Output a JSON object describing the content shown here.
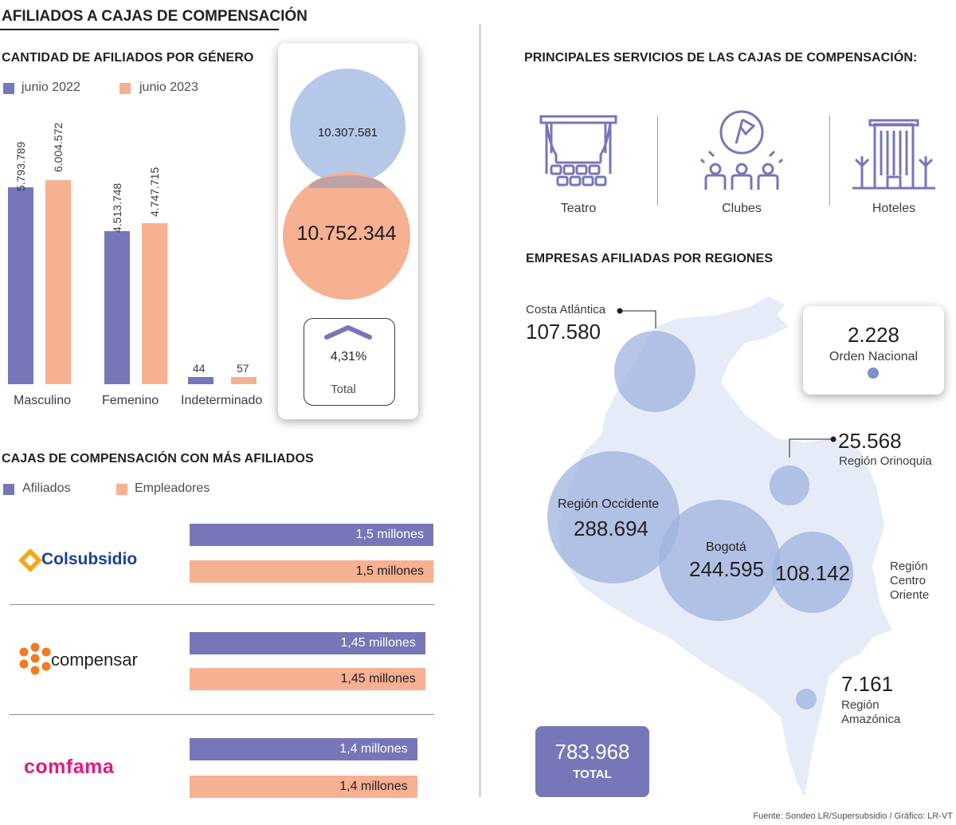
{
  "title": "AFILIADOS A CAJAS DE COMPENSACIÓN",
  "colors": {
    "series1": "#7676b8",
    "series2": "#f6b092",
    "region": "#9fb3df",
    "map": "#e6ecf7",
    "text": "#231f20"
  },
  "gender_section": {
    "heading": "CANTIDAD DE AFILIADOS POR GÉNERO",
    "legend": [
      "junio 2022",
      "junio 2023"
    ],
    "labels": {
      "m22": "5.793.789",
      "m23": "6.004.572",
      "f22": "4.513.748",
      "f23": "4.747.715",
      "i22": "44",
      "i23": "57"
    },
    "categories": [
      "Masculino",
      "Femenino",
      "Indeterminado"
    ]
  },
  "totals_card": {
    "total_2022": "10.307.581",
    "total_2023": "10.752.344",
    "change": "4,31%",
    "change_label": "Total",
    "arrow_icon": "chevron-up-icon"
  },
  "cajas_section": {
    "heading": "CAJAS DE COMPENSACIÓN CON MÁS AFILIADOS",
    "legend": [
      "Afiliados",
      "Empleadores"
    ],
    "rows": [
      {
        "logo": "Colsubsidio",
        "afiliados_label": "1,5 millones",
        "empleadores_label": "1,5 millones"
      },
      {
        "logo": "compensar",
        "afiliados_label": "1,45 millones",
        "empleadores_label": "1,45 millones"
      },
      {
        "logo": "comfama",
        "afiliados_label": "1,4 millones",
        "empleadores_label": "1,4 millones"
      }
    ]
  },
  "services_section": {
    "heading": "PRINCIPALES SERVICIOS DE LAS CAJAS DE COMPENSACIÓN:",
    "items": [
      {
        "label": "Teatro",
        "icon": "theater-icon"
      },
      {
        "label": "Clubes",
        "icon": "club-icon"
      },
      {
        "label": "Hoteles",
        "icon": "hotel-icon"
      }
    ]
  },
  "regions_section": {
    "heading": "EMPRESAS AFILIADAS POR REGIONES",
    "costa": {
      "name": "Costa Atlántica",
      "value": "107.580"
    },
    "nacional": {
      "name": "Orden Nacional",
      "value": "2.228"
    },
    "orinoquia": {
      "name": "Región Orinoquia",
      "value": "25.568"
    },
    "occidente": {
      "name": "Región Occidente",
      "value": "288.694"
    },
    "bogota": {
      "name": "Bogotá",
      "value": "244.595"
    },
    "centro": {
      "name_line1": "Región",
      "name_line2": "Centro",
      "name_line3": "Oriente",
      "value": "108.142"
    },
    "amazonica": {
      "name_line1": "Región",
      "name_line2": "Amazónica",
      "value": "7.161"
    },
    "total": {
      "value": "783.968",
      "label": "TOTAL"
    }
  },
  "source": "Fuente: Sondeo LR/Supersubsidio / Gráfico: LR-VT",
  "chart_data": [
    {
      "type": "bar",
      "title": "CANTIDAD DE AFILIADOS POR GÉNERO",
      "categories": [
        "Masculino",
        "Femenino",
        "Indeterminado"
      ],
      "series": [
        {
          "name": "junio 2022",
          "values": [
            5793789,
            4513748,
            44
          ]
        },
        {
          "name": "junio 2023",
          "values": [
            6004572,
            4747715,
            57
          ]
        }
      ],
      "totals": {
        "junio 2022": 10307581,
        "junio 2023": 10752344
      },
      "change_pct": 4.31
    },
    {
      "type": "bar",
      "title": "CAJAS DE COMPENSACIÓN CON MÁS AFILIADOS",
      "categories": [
        "Colsubsidio",
        "compensar",
        "comfama"
      ],
      "series": [
        {
          "name": "Afiliados",
          "values": [
            1.5,
            1.45,
            1.4
          ]
        },
        {
          "name": "Empleadores",
          "values": [
            1.5,
            1.45,
            1.4
          ]
        }
      ]
    },
    {
      "type": "scatter",
      "title": "EMPRESAS AFILIADAS POR REGIONES",
      "categories": [
        "Costa Atlántica",
        "Orden Nacional",
        "Región Orinoquia",
        "Región Occidente",
        "Bogotá",
        "Región Centro Oriente",
        "Región Amazónica"
      ],
      "values": [
        107580,
        2228,
        25568,
        288694,
        244595,
        108142,
        7161
      ],
      "total": 783968
    }
  ]
}
